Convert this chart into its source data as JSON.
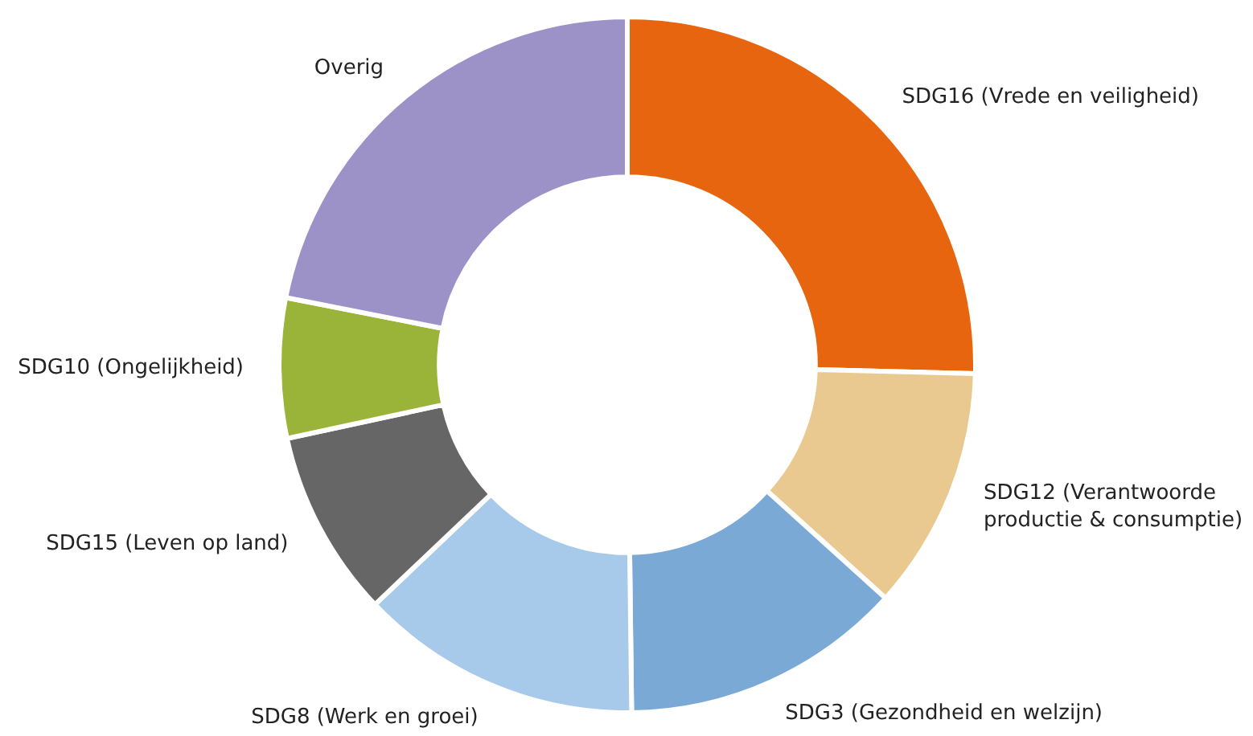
{
  "chart_data": {
    "type": "donut",
    "categories": [
      "SDG16 (Vrede en veiligheid)",
      "SDG12 (Verantwoorde productie & consumptie)",
      "SDG3 (Gezondheid en welzijn)",
      "SDG8 (Werk en groei)",
      "SDG15 (Leven op land)",
      "SDG10 (Ongelijkheid)",
      "Overig"
    ],
    "values": [
      25.4,
      11.3,
      13.1,
      13.1,
      8.7,
      6.5,
      21.9
    ],
    "colors": [
      "#e8650f",
      "#e9c98f",
      "#7aa9d6",
      "#a7c9ea",
      "#666666",
      "#9ab43a",
      "#9d92c8"
    ],
    "legend": false
  }
}
